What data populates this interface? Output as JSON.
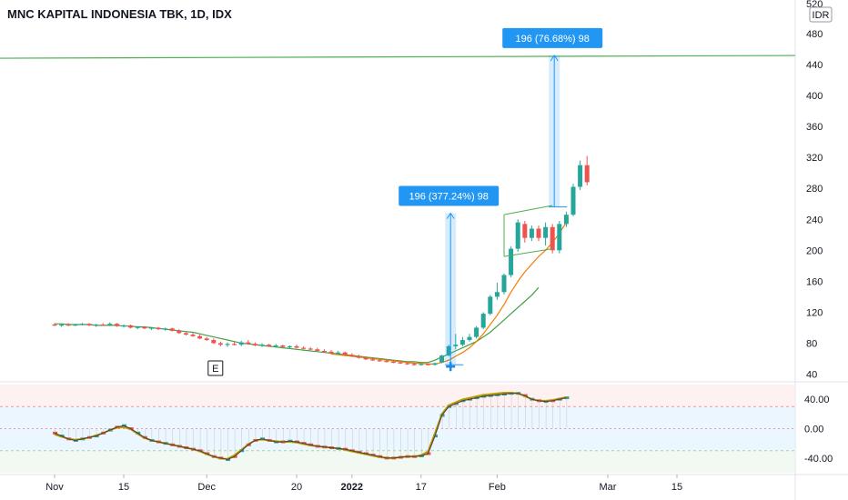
{
  "header": {
    "title": "MNC KAPITAL INDONESIA TBK, 1D, IDX"
  },
  "chart_data": {
    "type": "candlestick",
    "currency": "IDR",
    "price_axis": {
      "min": 30,
      "max": 500,
      "ticks": [
        40,
        80,
        120,
        160,
        200,
        240,
        280,
        320,
        360,
        400,
        440,
        480
      ],
      "top_label": "520"
    },
    "oscillator_axis": {
      "min": -60,
      "max": 60,
      "ticks": [
        "40.00",
        "0.00",
        "-40.00"
      ],
      "tick_values": [
        40,
        0,
        -40
      ],
      "upper_band": 30,
      "lower_band": -30
    },
    "x_axis": {
      "labels": [
        {
          "text": "Nov",
          "index": 0,
          "bold": false
        },
        {
          "text": "15",
          "index": 10,
          "bold": false
        },
        {
          "text": "Dec",
          "index": 22,
          "bold": false
        },
        {
          "text": "20",
          "index": 35,
          "bold": false
        },
        {
          "text": "2022",
          "index": 43,
          "bold": true
        },
        {
          "text": "17",
          "index": 53,
          "bold": false
        },
        {
          "text": "Feb",
          "index": 64,
          "bold": false
        },
        {
          "text": "Mar",
          "index": 80,
          "bold": false
        },
        {
          "text": "15",
          "index": 90,
          "bold": false
        }
      ]
    },
    "candles": [
      {
        "o": 104,
        "h": 106,
        "l": 102,
        "c": 103
      },
      {
        "o": 103,
        "h": 105,
        "l": 101,
        "c": 104
      },
      {
        "o": 104,
        "h": 106,
        "l": 102,
        "c": 103
      },
      {
        "o": 103,
        "h": 105,
        "l": 102,
        "c": 104
      },
      {
        "o": 104,
        "h": 106,
        "l": 103,
        "c": 105
      },
      {
        "o": 105,
        "h": 106,
        "l": 102,
        "c": 103
      },
      {
        "o": 103,
        "h": 105,
        "l": 101,
        "c": 104
      },
      {
        "o": 104,
        "h": 106,
        "l": 103,
        "c": 103
      },
      {
        "o": 103,
        "h": 107,
        "l": 102,
        "c": 105
      },
      {
        "o": 105,
        "h": 106,
        "l": 101,
        "c": 102
      },
      {
        "o": 102,
        "h": 104,
        "l": 100,
        "c": 103
      },
      {
        "o": 103,
        "h": 104,
        "l": 99,
        "c": 100
      },
      {
        "o": 100,
        "h": 102,
        "l": 98,
        "c": 101
      },
      {
        "o": 101,
        "h": 102,
        "l": 98,
        "c": 99
      },
      {
        "o": 99,
        "h": 101,
        "l": 97,
        "c": 100
      },
      {
        "o": 100,
        "h": 101,
        "l": 97,
        "c": 98
      },
      {
        "o": 98,
        "h": 100,
        "l": 96,
        "c": 99
      },
      {
        "o": 99,
        "h": 100,
        "l": 95,
        "c": 96
      },
      {
        "o": 96,
        "h": 98,
        "l": 92,
        "c": 93
      },
      {
        "o": 93,
        "h": 95,
        "l": 90,
        "c": 91
      },
      {
        "o": 91,
        "h": 93,
        "l": 88,
        "c": 89
      },
      {
        "o": 89,
        "h": 91,
        "l": 85,
        "c": 86
      },
      {
        "o": 86,
        "h": 88,
        "l": 83,
        "c": 84
      },
      {
        "o": 84,
        "h": 86,
        "l": 79,
        "c": 80
      },
      {
        "o": 80,
        "h": 82,
        "l": 76,
        "c": 78
      },
      {
        "o": 78,
        "h": 81,
        "l": 75,
        "c": 79
      },
      {
        "o": 79,
        "h": 82,
        "l": 77,
        "c": 78
      },
      {
        "o": 78,
        "h": 83,
        "l": 76,
        "c": 81
      },
      {
        "o": 81,
        "h": 84,
        "l": 78,
        "c": 79
      },
      {
        "o": 79,
        "h": 81,
        "l": 76,
        "c": 77
      },
      {
        "o": 77,
        "h": 80,
        "l": 75,
        "c": 78
      },
      {
        "o": 78,
        "h": 79,
        "l": 75,
        "c": 76
      },
      {
        "o": 76,
        "h": 79,
        "l": 74,
        "c": 77
      },
      {
        "o": 77,
        "h": 78,
        "l": 74,
        "c": 75
      },
      {
        "o": 75,
        "h": 77,
        "l": 73,
        "c": 76
      },
      {
        "o": 76,
        "h": 78,
        "l": 73,
        "c": 74
      },
      {
        "o": 74,
        "h": 76,
        "l": 72,
        "c": 73
      },
      {
        "o": 73,
        "h": 75,
        "l": 71,
        "c": 72
      },
      {
        "o": 72,
        "h": 74,
        "l": 69,
        "c": 70
      },
      {
        "o": 70,
        "h": 72,
        "l": 68,
        "c": 69
      },
      {
        "o": 69,
        "h": 71,
        "l": 66,
        "c": 67
      },
      {
        "o": 67,
        "h": 70,
        "l": 65,
        "c": 68
      },
      {
        "o": 68,
        "h": 69,
        "l": 64,
        "c": 65
      },
      {
        "o": 65,
        "h": 67,
        "l": 62,
        "c": 63
      },
      {
        "o": 63,
        "h": 65,
        "l": 60,
        "c": 61
      },
      {
        "o": 61,
        "h": 63,
        "l": 58,
        "c": 59
      },
      {
        "o": 59,
        "h": 61,
        "l": 57,
        "c": 58
      },
      {
        "o": 58,
        "h": 60,
        "l": 56,
        "c": 57
      },
      {
        "o": 57,
        "h": 59,
        "l": 55,
        "c": 56
      },
      {
        "o": 56,
        "h": 58,
        "l": 54,
        "c": 55
      },
      {
        "o": 55,
        "h": 57,
        "l": 53,
        "c": 54
      },
      {
        "o": 54,
        "h": 56,
        "l": 52,
        "c": 53
      },
      {
        "o": 53,
        "h": 55,
        "l": 51,
        "c": 52
      },
      {
        "o": 52,
        "h": 54,
        "l": 51,
        "c": 53
      },
      {
        "o": 53,
        "h": 54,
        "l": 51,
        "c": 52
      },
      {
        "o": 52,
        "h": 55,
        "l": 51,
        "c": 54
      },
      {
        "o": 55,
        "h": 65,
        "l": 54,
        "c": 64
      },
      {
        "o": 64,
        "h": 78,
        "l": 63,
        "c": 76
      },
      {
        "o": 76,
        "h": 92,
        "l": 72,
        "c": 78
      },
      {
        "o": 78,
        "h": 88,
        "l": 76,
        "c": 84
      },
      {
        "o": 84,
        "h": 92,
        "l": 82,
        "c": 88
      },
      {
        "o": 88,
        "h": 102,
        "l": 86,
        "c": 100
      },
      {
        "o": 100,
        "h": 120,
        "l": 98,
        "c": 118
      },
      {
        "o": 118,
        "h": 142,
        "l": 116,
        "c": 140
      },
      {
        "o": 140,
        "h": 158,
        "l": 136,
        "c": 146
      },
      {
        "o": 146,
        "h": 170,
        "l": 143,
        "c": 168
      },
      {
        "o": 168,
        "h": 205,
        "l": 165,
        "c": 202
      },
      {
        "o": 202,
        "h": 240,
        "l": 198,
        "c": 236
      },
      {
        "o": 234,
        "h": 238,
        "l": 210,
        "c": 216
      },
      {
        "o": 216,
        "h": 232,
        "l": 212,
        "c": 228
      },
      {
        "o": 228,
        "h": 232,
        "l": 212,
        "c": 216
      },
      {
        "o": 216,
        "h": 236,
        "l": 206,
        "c": 230
      },
      {
        "o": 230,
        "h": 234,
        "l": 196,
        "c": 200
      },
      {
        "o": 200,
        "h": 238,
        "l": 196,
        "c": 234
      },
      {
        "o": 234,
        "h": 250,
        "l": 230,
        "c": 246
      },
      {
        "o": 246,
        "h": 286,
        "l": 244,
        "c": 282
      },
      {
        "o": 282,
        "h": 316,
        "l": 278,
        "c": 310
      },
      {
        "o": 310,
        "h": 322,
        "l": 284,
        "c": 288
      }
    ],
    "ma_fast_start": 40,
    "ma_fast": [
      66,
      65,
      64,
      63,
      62,
      61,
      60,
      59,
      58,
      57,
      56,
      55,
      54,
      54,
      53,
      53,
      55,
      58,
      63,
      68,
      74,
      82,
      92,
      104,
      116,
      130,
      146,
      160,
      172,
      182,
      192,
      200,
      210,
      222,
      236
    ],
    "ma_slow_start": 0,
    "ma_slow": [
      105,
      105,
      104,
      104,
      104,
      104,
      103,
      103,
      103,
      103,
      102,
      102,
      101,
      101,
      100,
      99,
      98,
      97,
      96,
      95,
      94,
      92,
      90,
      88,
      86,
      84,
      82,
      80,
      79,
      78,
      77,
      76,
      75,
      74,
      73,
      72,
      71,
      70,
      69,
      68,
      67,
      66,
      65,
      64,
      63,
      62,
      61,
      60,
      59,
      58,
      57,
      56,
      56,
      55,
      55,
      58,
      62,
      66,
      70,
      74,
      78,
      82,
      88,
      94,
      102,
      110,
      118,
      126,
      134,
      142,
      152
    ],
    "oscillator": [
      -6,
      -10,
      -14,
      -16,
      -14,
      -12,
      -10,
      -6,
      -2,
      2,
      4,
      0,
      -6,
      -12,
      -16,
      -18,
      -20,
      -22,
      -24,
      -26,
      -28,
      -30,
      -34,
      -38,
      -40,
      -42,
      -38,
      -30,
      -22,
      -16,
      -14,
      -16,
      -18,
      -18,
      -17,
      -18,
      -20,
      -22,
      -24,
      -25,
      -26,
      -27,
      -28,
      -30,
      -32,
      -34,
      -36,
      -38,
      -40,
      -40,
      -39,
      -38,
      -38,
      -37,
      -34,
      -10,
      18,
      30,
      34,
      38,
      40,
      42,
      44,
      45,
      46,
      47,
      48,
      48,
      45,
      40,
      38,
      37,
      38,
      40,
      42
    ],
    "oscillator_signal": [
      -8,
      -11,
      -14,
      -15,
      -14,
      -12,
      -9,
      -6,
      -2,
      1,
      2,
      -1,
      -7,
      -13,
      -16,
      -18,
      -20,
      -22,
      -24,
      -26,
      -28,
      -31,
      -35,
      -38,
      -41,
      -41,
      -36,
      -29,
      -21,
      -16,
      -15,
      -16,
      -17,
      -18,
      -18,
      -19,
      -21,
      -23,
      -24,
      -25,
      -26,
      -27,
      -29,
      -31,
      -33,
      -35,
      -37,
      -39,
      -40,
      -40,
      -39,
      -38,
      -38,
      -36,
      -31,
      -6,
      20,
      32,
      36,
      40,
      42,
      44,
      46,
      47,
      48,
      49,
      49,
      48,
      44,
      40,
      38,
      38,
      39,
      41,
      43
    ],
    "trendline_level": 450,
    "annotations": [
      {
        "label": "196 (377.24%) 98",
        "from_index": 57,
        "from_price": 52,
        "to_price": 248
      },
      {
        "label": "196 (76.68%) 98",
        "from_index": 72,
        "from_price": 256,
        "to_price": 452
      }
    ],
    "flag_pattern": {
      "start_index": 65,
      "end_index": 72,
      "top_start": 246,
      "top_end": 258,
      "bottom_start": 192,
      "bottom_end": 202
    },
    "marker_label": "E",
    "marker_index": 23,
    "colors": {
      "up": "#26a69a",
      "down": "#ef5350",
      "ma_fast": "#f57c00",
      "ma_slow": "#43a047",
      "osc": "#5d4037",
      "osc_signal": "#b8a000",
      "trendline": "#4caf50",
      "callout": "#2196f3"
    }
  }
}
